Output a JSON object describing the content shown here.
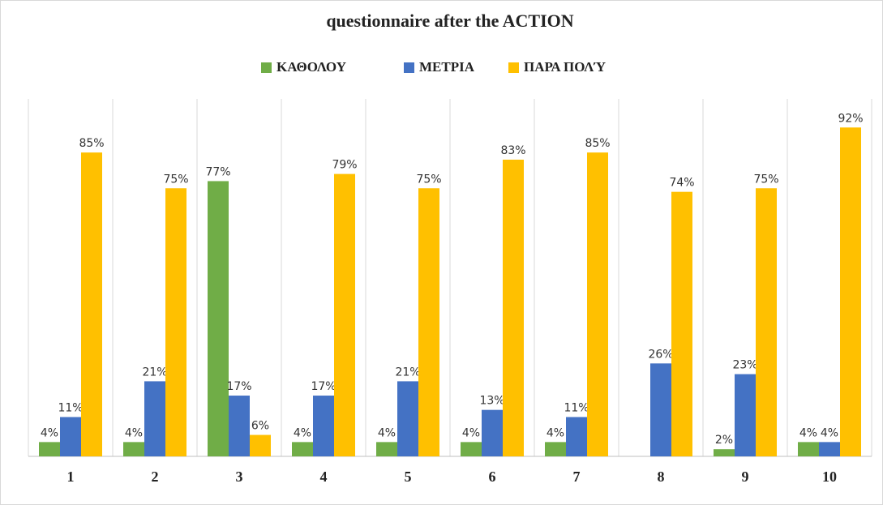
{
  "chart_data": {
    "type": "bar",
    "title": "questionnaire after the ACTION",
    "categories": [
      "1",
      "2",
      "3",
      "4",
      "5",
      "6",
      "7",
      "8",
      "9",
      "10"
    ],
    "series": [
      {
        "name": "ΚΑΘΟΛΟΥ",
        "color": "#70ad47",
        "values": [
          4,
          4,
          77,
          4,
          4,
          4,
          4,
          null,
          2,
          4
        ],
        "value_labels": [
          "4%",
          "4%",
          "77%",
          "4%",
          "4%",
          "4%",
          "4%",
          null,
          "2%",
          "4%"
        ]
      },
      {
        "name": "ΜΕΤΡΙΑ",
        "color": "#4472c4",
        "values": [
          11,
          21,
          17,
          17,
          21,
          13,
          11,
          26,
          23,
          4
        ],
        "value_labels": [
          "11%",
          "21%",
          "17%",
          "17%",
          "21%",
          "13%",
          "11%",
          "26%",
          "23%",
          "4%"
        ]
      },
      {
        "name": "ΠΑΡΑ ΠΟΛΎ",
        "color": "#ffc000",
        "values": [
          85,
          75,
          6,
          79,
          75,
          83,
          85,
          74,
          75,
          92
        ],
        "value_labels": [
          "85%",
          "75%",
          "6%",
          "79%",
          "75%",
          "83%",
          "85%",
          "74%",
          "75%",
          "92%"
        ]
      }
    ],
    "ylim": [
      0,
      100
    ],
    "legend": "top"
  }
}
